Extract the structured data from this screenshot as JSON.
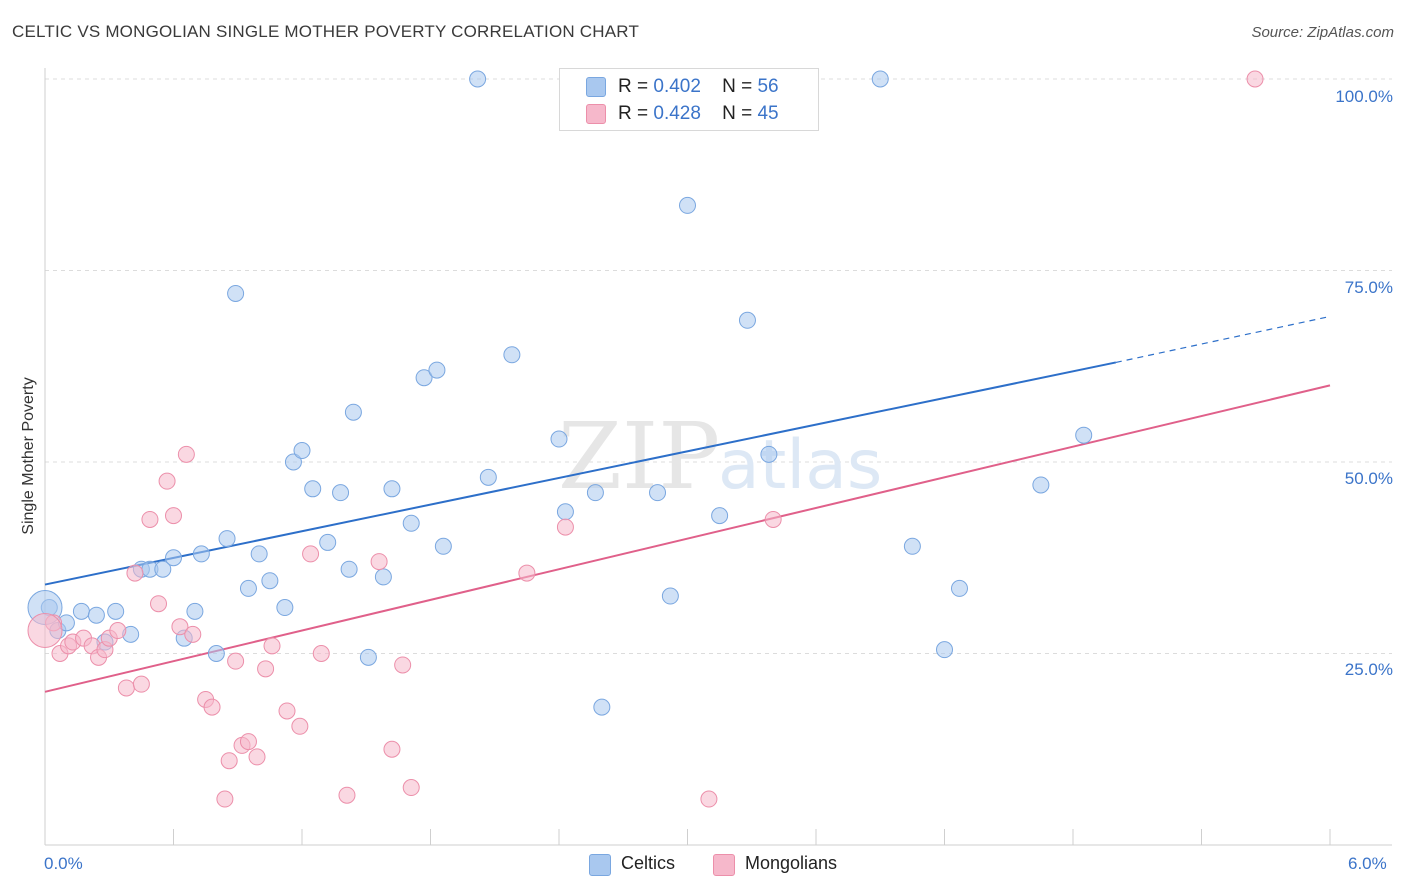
{
  "title": "CELTIC VS MONGOLIAN SINGLE MOTHER POVERTY CORRELATION CHART",
  "source": "Source: ZipAtlas.com",
  "watermark": {
    "zip": "ZIP",
    "atlas": "atlas"
  },
  "stats": [
    {
      "r_label": "R =",
      "r_value": "0.402",
      "n_label": "N =",
      "n_value": "56",
      "color": "#a9c8ef"
    },
    {
      "r_label": "R =",
      "r_value": "0.428",
      "n_label": "N =",
      "n_value": "45",
      "color": "#f6b8cb"
    }
  ],
  "legend": [
    {
      "label": "Celtics",
      "color": "#a9c8ef"
    },
    {
      "label": "Mongolians",
      "color": "#f6b8cb"
    }
  ],
  "chart_data": {
    "type": "scatter",
    "title": "CELTIC VS MONGOLIAN SINGLE MOTHER POVERTY CORRELATION CHART",
    "xlabel": "",
    "ylabel": "Single Mother Poverty",
    "xlim": [
      0,
      6
    ],
    "ylim": [
      0,
      100
    ],
    "x_tick_labels": {
      "min": "0.0%",
      "max": "6.0%"
    },
    "y_ticks": [
      {
        "value": 25,
        "label": "25.0%"
      },
      {
        "value": 50,
        "label": "50.0%"
      },
      {
        "value": 75,
        "label": "75.0%"
      },
      {
        "value": 100,
        "label": "100.0%"
      }
    ],
    "series": [
      {
        "name": "Celtics",
        "color": "#a9c8ef",
        "stroke": "#7aa7e0",
        "trend": {
          "x0": 0,
          "y0": 34,
          "x1": 5.0,
          "y1": 63,
          "dash_to_x": 6.0,
          "dash_to_y": 69
        },
        "trend_color": "#2d6fc9",
        "points": [
          [
            0.02,
            31
          ],
          [
            0.06,
            28
          ],
          [
            0.1,
            29
          ],
          [
            0.17,
            30.5
          ],
          [
            0.24,
            30
          ],
          [
            0.33,
            30.5
          ],
          [
            0.28,
            26.5
          ],
          [
            0.4,
            27.5
          ],
          [
            0.45,
            36
          ],
          [
            0.49,
            36
          ],
          [
            0.55,
            36
          ],
          [
            0.6,
            37.5
          ],
          [
            0.65,
            27
          ],
          [
            0.7,
            30.5
          ],
          [
            0.73,
            38
          ],
          [
            0.8,
            25
          ],
          [
            0.85,
            40
          ],
          [
            0.89,
            72
          ],
          [
            0.95,
            33.5
          ],
          [
            1.0,
            38
          ],
          [
            1.05,
            34.5
          ],
          [
            1.12,
            31
          ],
          [
            1.16,
            50
          ],
          [
            1.2,
            51.5
          ],
          [
            1.25,
            46.5
          ],
          [
            1.32,
            39.5
          ],
          [
            1.38,
            46
          ],
          [
            1.42,
            36
          ],
          [
            1.44,
            56.5
          ],
          [
            1.51,
            24.5
          ],
          [
            1.58,
            35
          ],
          [
            1.62,
            46.5
          ],
          [
            1.71,
            42
          ],
          [
            1.77,
            61
          ],
          [
            1.83,
            62
          ],
          [
            1.86,
            39
          ],
          [
            2.02,
            100
          ],
          [
            2.07,
            48
          ],
          [
            2.18,
            64
          ],
          [
            2.4,
            53
          ],
          [
            2.43,
            43.5
          ],
          [
            2.57,
            46
          ],
          [
            2.6,
            18
          ],
          [
            2.86,
            46
          ],
          [
            2.92,
            32.5
          ],
          [
            3.0,
            83.5
          ],
          [
            3.15,
            43
          ],
          [
            3.28,
            68.5
          ],
          [
            3.38,
            51
          ],
          [
            3.9,
            100
          ],
          [
            4.05,
            39
          ],
          [
            4.2,
            25.5
          ],
          [
            4.27,
            33.5
          ],
          [
            4.65,
            47
          ],
          [
            4.85,
            53.5
          ],
          [
            0.0,
            31
          ]
        ]
      },
      {
        "name": "Mongolians",
        "color": "#f6b8cb",
        "stroke": "#ec8faa",
        "trend": {
          "x0": 0,
          "y0": 20,
          "x1": 6.0,
          "y1": 60
        },
        "trend_color": "#e0608a",
        "points": [
          [
            0.04,
            29
          ],
          [
            0.07,
            25
          ],
          [
            0.11,
            26
          ],
          [
            0.13,
            26.5
          ],
          [
            0.18,
            27
          ],
          [
            0.22,
            26
          ],
          [
            0.25,
            24.5
          ],
          [
            0.28,
            25.5
          ],
          [
            0.3,
            27
          ],
          [
            0.34,
            28
          ],
          [
            0.38,
            20.5
          ],
          [
            0.42,
            35.5
          ],
          [
            0.45,
            21
          ],
          [
            0.49,
            42.5
          ],
          [
            0.53,
            31.5
          ],
          [
            0.57,
            47.5
          ],
          [
            0.6,
            43
          ],
          [
            0.63,
            28.5
          ],
          [
            0.66,
            51
          ],
          [
            0.69,
            27.5
          ],
          [
            0.75,
            19
          ],
          [
            0.78,
            18
          ],
          [
            0.84,
            6
          ],
          [
            0.86,
            11
          ],
          [
            0.89,
            24
          ],
          [
            0.92,
            13
          ],
          [
            0.95,
            13.5
          ],
          [
            0.99,
            11.5
          ],
          [
            1.03,
            23
          ],
          [
            1.06,
            26
          ],
          [
            1.13,
            17.5
          ],
          [
            1.19,
            15.5
          ],
          [
            1.24,
            38
          ],
          [
            1.29,
            25
          ],
          [
            1.41,
            6.5
          ],
          [
            1.56,
            37
          ],
          [
            1.62,
            12.5
          ],
          [
            1.67,
            23.5
          ],
          [
            1.71,
            7.5
          ],
          [
            2.25,
            35.5
          ],
          [
            2.43,
            41.5
          ],
          [
            3.1,
            6
          ],
          [
            3.4,
            42.5
          ],
          [
            5.65,
            100
          ],
          [
            0.0,
            28
          ]
        ]
      }
    ]
  }
}
